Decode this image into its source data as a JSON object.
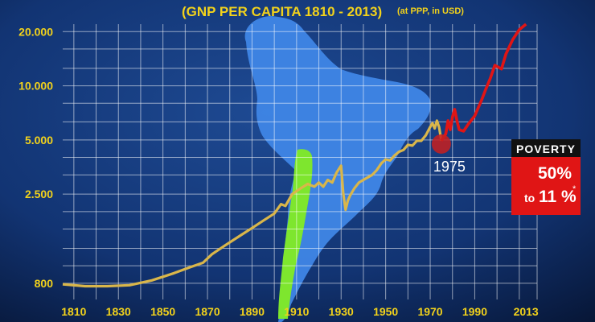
{
  "chart_data": {
    "type": "line",
    "title": "(GNP PER CAPITA 1810 - 2013)",
    "subtitle": "(at PPP, in USD)",
    "xlabel": "",
    "ylabel": "",
    "y_scale": "log",
    "xlim": [
      1805,
      2018
    ],
    "ylim": [
      650,
      22000
    ],
    "x_ticks": [
      1810,
      1830,
      1850,
      1870,
      1890,
      1910,
      1930,
      1950,
      1970,
      1990,
      2013
    ],
    "x_tick_labels": [
      "1810",
      "1830",
      "1850",
      "1870",
      "1890",
      "1910",
      "1930",
      "1950",
      "1970",
      "1990",
      "2013"
    ],
    "y_ticks": [
      800,
      2500,
      5000,
      10000,
      20000
    ],
    "y_tick_labels": [
      "800",
      "2.500",
      "5.000",
      "10.000",
      "20.000"
    ],
    "grid": true,
    "colors": {
      "before": "#d9b64a",
      "after": "#e01515",
      "highlight": "#c81e1e",
      "background": "#0a1f4a",
      "map": "#3f86e6",
      "chile": "#7ee62e",
      "tick": "#f2d21b"
    },
    "series": [
      {
        "x": [
          1805,
          1815,
          1825,
          1835,
          1845,
          1855,
          1862,
          1868,
          1872,
          1878,
          1885,
          1890,
          1895,
          1900,
          1903,
          1905,
          1908,
          1912,
          1915,
          1918,
          1920,
          1922,
          1924,
          1926,
          1928,
          1930,
          1931,
          1932,
          1933,
          1934,
          1936,
          1938,
          1940,
          1942,
          1944,
          1946,
          1948,
          1950,
          1952,
          1954,
          1956,
          1958,
          1960,
          1962,
          1964,
          1966,
          1968,
          1970,
          1971,
          1972,
          1973,
          1974,
          1975
        ],
        "y": [
          790,
          770,
          770,
          780,
          830,
          910,
          980,
          1040,
          1160,
          1300,
          1480,
          1620,
          1780,
          1950,
          2200,
          2150,
          2500,
          2700,
          2850,
          2750,
          2900,
          2750,
          3000,
          2900,
          3300,
          3600,
          2500,
          2050,
          2300,
          2450,
          2700,
          2900,
          3000,
          3100,
          3200,
          3400,
          3700,
          3900,
          3850,
          4100,
          4300,
          4400,
          4700,
          4650,
          4950,
          4950,
          5300,
          5900,
          6200,
          5800,
          6400,
          5900,
          4950
        ]
      },
      {
        "x": [
          1975,
          1977,
          1978,
          1979,
          1980,
          1981,
          1982,
          1983,
          1985,
          1987,
          1990,
          1993,
          1995,
          1997,
          1999,
          2002,
          2004,
          2007,
          2010,
          2013
        ],
        "y": [
          4950,
          5400,
          6400,
          5700,
          6700,
          7400,
          6400,
          5700,
          5600,
          6100,
          6800,
          8300,
          9600,
          11000,
          13000,
          12400,
          15000,
          18000,
          20500,
          22000
        ]
      }
    ],
    "annotations": {
      "year_marker": {
        "label": "1975",
        "x": 1975,
        "y": 4950
      },
      "poverty_box": {
        "title": "POVERTY",
        "from": "50%",
        "to_prefix": "to",
        "to": "11 %",
        "mark": "*"
      }
    }
  }
}
